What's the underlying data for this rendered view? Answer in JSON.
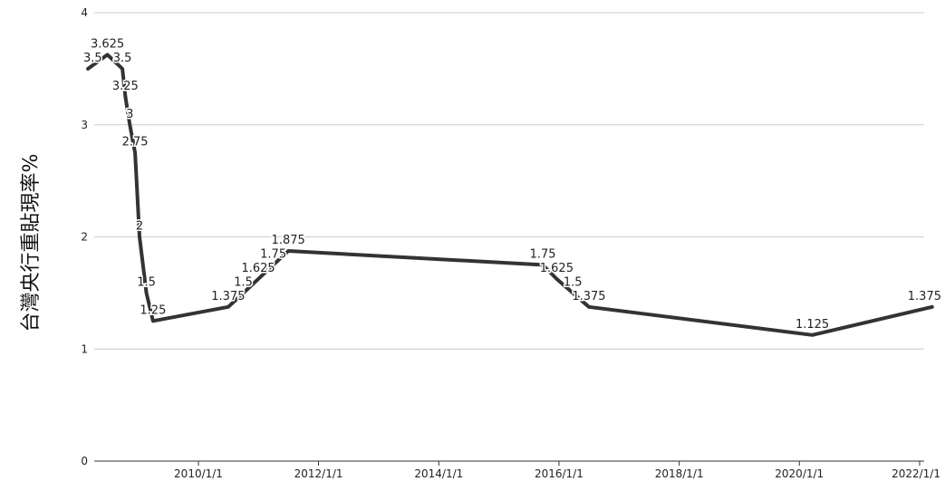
{
  "chart_data": {
    "type": "line",
    "title": "",
    "xlabel": "",
    "ylabel": "台灣央行重貼現率%",
    "ylim": [
      0,
      4
    ],
    "y_ticks": [
      "0",
      "1",
      "2",
      "3",
      "4"
    ],
    "x_ticks": [
      "2010/1/1",
      "2012/1/1",
      "2014/1/1",
      "2016/1/1",
      "2018/1/1",
      "2020/1/1",
      "2022/1/1"
    ],
    "grid": true,
    "legend": "none",
    "line_color": "#333333",
    "series": [
      {
        "points": [
          {
            "x": "2008-03-01",
            "y": 3.5,
            "label": "3.5"
          },
          {
            "x": "2008-06-27",
            "y": 3.625,
            "label": "3.625"
          },
          {
            "x": "2008-09-26",
            "y": 3.5,
            "label": "3.5"
          },
          {
            "x": "2008-10-14",
            "y": 3.25,
            "label": "3.25"
          },
          {
            "x": "2008-11-10",
            "y": 3,
            "label": "3"
          },
          {
            "x": "2008-12-12",
            "y": 2.75,
            "label": "2.75"
          },
          {
            "x": "2009-01-08",
            "y": 2,
            "label": "2"
          },
          {
            "x": "2009-02-19",
            "y": 1.5,
            "label": "1.5"
          },
          {
            "x": "2009-03-31",
            "y": 1.25,
            "label": "1.25"
          },
          {
            "x": "2010-07-01",
            "y": 1.375,
            "label": "1.375"
          },
          {
            "x": "2010-10-01",
            "y": 1.5,
            "label": "1.5"
          },
          {
            "x": "2010-12-31",
            "y": 1.625,
            "label": "1.625"
          },
          {
            "x": "2011-04-01",
            "y": 1.75,
            "label": "1.75"
          },
          {
            "x": "2011-07-01",
            "y": 1.875,
            "label": "1.875"
          },
          {
            "x": "2015-09-25",
            "y": 1.75,
            "label": "1.75"
          },
          {
            "x": "2015-12-18",
            "y": 1.625,
            "label": "1.625"
          },
          {
            "x": "2016-03-25",
            "y": 1.5,
            "label": "1.5"
          },
          {
            "x": "2016-07-01",
            "y": 1.375,
            "label": "1.375"
          },
          {
            "x": "2020-03-20",
            "y": 1.125,
            "label": "1.125"
          },
          {
            "x": "2022-03-18",
            "y": 1.375,
            "label": "1.375"
          }
        ]
      }
    ]
  }
}
